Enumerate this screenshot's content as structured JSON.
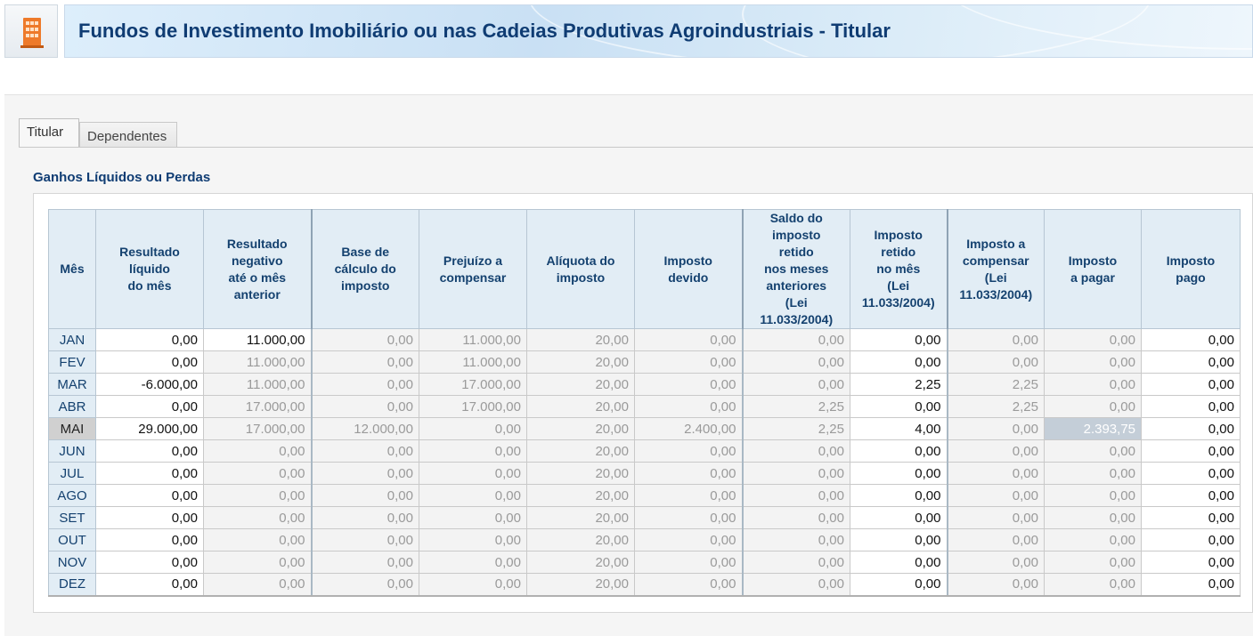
{
  "header": {
    "icon": "building-icon",
    "title": "Fundos de Investimento Imobiliário ou nas Cadeias Produtivas Agroindustriais - Titular"
  },
  "tabs": [
    {
      "label": "Titular",
      "active": true
    },
    {
      "label": "Dependentes",
      "active": false
    }
  ],
  "section": {
    "title": "Ganhos Líquidos ou Perdas"
  },
  "columns": [
    "Mês",
    "Resultado\nlíquido\ndo mês",
    "Resultado\nnegativo\naté o mês\nanterior",
    "Base de\ncálculo do\nimposto",
    "Prejuízo a\ncompensar",
    "Alíquota do\nimposto",
    "Imposto\ndevido",
    "Saldo do\nimposto\nretido\nnos meses\nanteriores\n(Lei\n11.033/2004)",
    "Imposto\nretido\nno mês\n(Lei\n11.033/2004)",
    "Imposto a\ncompensar\n(Lei\n11.033/2004)",
    "Imposto\na pagar",
    "Imposto\npago"
  ],
  "rows": [
    {
      "mes": "JAN",
      "v": [
        "0,00",
        "11.000,00",
        "0,00",
        "11.000,00",
        "20,00",
        "0,00",
        "0,00",
        "0,00",
        "0,00",
        "0,00",
        "0,00"
      ]
    },
    {
      "mes": "FEV",
      "v": [
        "0,00",
        "11.000,00",
        "0,00",
        "11.000,00",
        "20,00",
        "0,00",
        "0,00",
        "0,00",
        "0,00",
        "0,00",
        "0,00"
      ]
    },
    {
      "mes": "MAR",
      "v": [
        "-6.000,00",
        "11.000,00",
        "0,00",
        "17.000,00",
        "20,00",
        "0,00",
        "0,00",
        "2,25",
        "2,25",
        "0,00",
        "0,00"
      ]
    },
    {
      "mes": "ABR",
      "v": [
        "0,00",
        "17.000,00",
        "0,00",
        "17.000,00",
        "20,00",
        "0,00",
        "2,25",
        "0,00",
        "2,25",
        "0,00",
        "0,00"
      ]
    },
    {
      "mes": "MAI",
      "v": [
        "29.000,00",
        "17.000,00",
        "12.000,00",
        "0,00",
        "20,00",
        "2.400,00",
        "2,25",
        "4,00",
        "0,00",
        "2.393,75",
        "0,00"
      ]
    },
    {
      "mes": "JUN",
      "v": [
        "0,00",
        "0,00",
        "0,00",
        "0,00",
        "20,00",
        "0,00",
        "0,00",
        "0,00",
        "0,00",
        "0,00",
        "0,00"
      ]
    },
    {
      "mes": "JUL",
      "v": [
        "0,00",
        "0,00",
        "0,00",
        "0,00",
        "20,00",
        "0,00",
        "0,00",
        "0,00",
        "0,00",
        "0,00",
        "0,00"
      ]
    },
    {
      "mes": "AGO",
      "v": [
        "0,00",
        "0,00",
        "0,00",
        "0,00",
        "20,00",
        "0,00",
        "0,00",
        "0,00",
        "0,00",
        "0,00",
        "0,00"
      ]
    },
    {
      "mes": "SET",
      "v": [
        "0,00",
        "0,00",
        "0,00",
        "0,00",
        "20,00",
        "0,00",
        "0,00",
        "0,00",
        "0,00",
        "0,00",
        "0,00"
      ]
    },
    {
      "mes": "OUT",
      "v": [
        "0,00",
        "0,00",
        "0,00",
        "0,00",
        "20,00",
        "0,00",
        "0,00",
        "0,00",
        "0,00",
        "0,00",
        "0,00"
      ]
    },
    {
      "mes": "NOV",
      "v": [
        "0,00",
        "0,00",
        "0,00",
        "0,00",
        "20,00",
        "0,00",
        "0,00",
        "0,00",
        "0,00",
        "0,00",
        "0,00"
      ]
    },
    {
      "mes": "DEZ",
      "v": [
        "0,00",
        "0,00",
        "0,00",
        "0,00",
        "20,00",
        "0,00",
        "0,00",
        "0,00",
        "0,00",
        "0,00",
        "0,00"
      ]
    }
  ]
}
